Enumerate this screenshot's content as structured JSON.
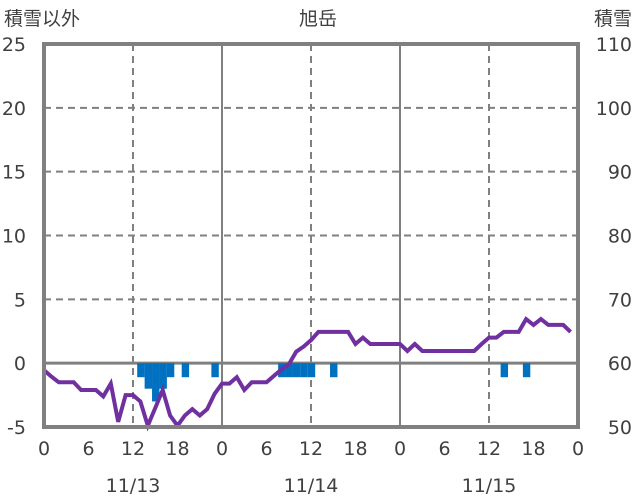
{
  "chart_data": {
    "type": "bar+line",
    "title": "旭岳",
    "left_axis_label": "積雪以外",
    "right_axis_label": "積雪",
    "left_ylim": [
      -5,
      25
    ],
    "left_ticks": [
      "25",
      "20",
      "15",
      "10",
      "5",
      "0",
      "-5"
    ],
    "left_tick_values": [
      25,
      20,
      15,
      10,
      5,
      0,
      -5
    ],
    "right_ylim": [
      50,
      110
    ],
    "right_ticks": [
      "110",
      "100",
      "90",
      "80",
      "70",
      "60",
      "50"
    ],
    "right_tick_values": [
      110,
      100,
      90,
      80,
      70,
      60,
      50
    ],
    "x_range_hours": [
      0,
      72
    ],
    "x_ticks": [
      "0",
      "6",
      "12",
      "18",
      "0",
      "6",
      "12",
      "18",
      "0",
      "6",
      "12",
      "18",
      "0"
    ],
    "x_tick_hours": [
      0,
      6,
      12,
      18,
      24,
      30,
      36,
      42,
      48,
      54,
      60,
      66,
      72
    ],
    "dates": [
      "11/13",
      "11/14",
      "11/15"
    ],
    "grid": true,
    "colors": {
      "bars": "#0070C0",
      "line": "#7030A0",
      "frame": "#808080"
    },
    "bar_series": {
      "name": "積雪以外",
      "axis": "left",
      "hours": [
        13,
        14,
        15,
        16,
        17,
        19,
        23,
        32,
        33,
        34,
        35,
        36,
        39,
        62,
        65
      ],
      "values": [
        -1.1,
        -2,
        -3,
        -2,
        -1.1,
        -1.1,
        -1.1,
        -1.1,
        -1.1,
        -1.1,
        -1.1,
        -1.1,
        -1.1,
        -1.1,
        -1.1
      ]
    },
    "line_series": {
      "name": "積雪",
      "axis": "right",
      "hours": [
        0,
        1,
        2,
        3,
        4,
        5,
        6,
        7,
        8,
        9,
        10,
        11,
        12,
        13,
        14,
        15,
        16,
        17,
        18,
        19,
        20,
        21,
        22,
        23,
        24,
        25,
        26,
        27,
        28,
        29,
        30,
        31,
        32,
        33,
        34,
        35,
        36,
        37,
        38,
        39,
        40,
        41,
        42,
        43,
        44,
        45,
        46,
        47,
        48,
        49,
        50,
        51,
        52,
        53,
        54,
        55,
        56,
        57,
        58,
        59,
        60,
        61,
        62,
        63,
        64,
        65,
        66,
        67,
        68,
        69,
        70,
        71
      ],
      "values": [
        58.9,
        57.9,
        57,
        57,
        57,
        55.8,
        55.8,
        55.8,
        54.8,
        56.8,
        50.8,
        55,
        55,
        54,
        50.2,
        53,
        55.8,
        51.8,
        50.2,
        51.8,
        52.8,
        51.8,
        52.8,
        55.2,
        56.8,
        56.8,
        57.8,
        55.8,
        57,
        57,
        57,
        58,
        59,
        59.8,
        61.8,
        62.6,
        63.6,
        64.9,
        64.9,
        64.9,
        64.9,
        64.9,
        63,
        64,
        63,
        63,
        63,
        63,
        63,
        61.9,
        63,
        61.9,
        61.9,
        61.9,
        61.9,
        61.9,
        61.9,
        61.9,
        61.9,
        63,
        64,
        64,
        64.9,
        64.9,
        64.9,
        66.9,
        66,
        66.9,
        66,
        66,
        66,
        64.9
      ]
    }
  }
}
